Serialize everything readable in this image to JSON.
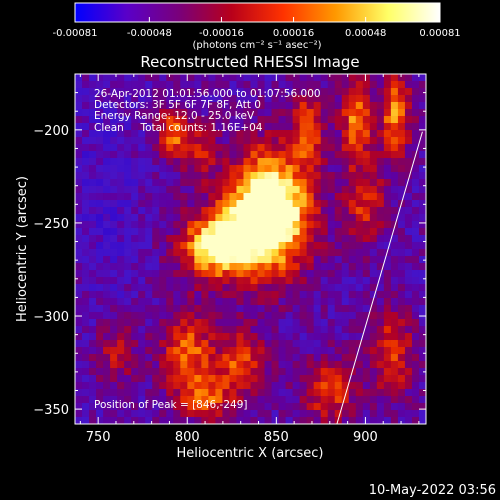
{
  "colorbar": {
    "ticks": [
      "-0.00081",
      "-0.00048",
      "-0.00016",
      "0.00016",
      "0.00048",
      "0.00081"
    ],
    "tick_values": [
      -0.00081,
      -0.00048,
      -0.00016,
      0.00016,
      0.00048,
      0.00081
    ],
    "range": [
      -0.00081,
      0.00081
    ],
    "unit_label": "(photons cm⁻² s⁻¹ asec⁻²)",
    "colors": [
      "#0000ff",
      "#5a00c8",
      "#7a007a",
      "#b8001a",
      "#ff3300",
      "#ff9900",
      "#ffff66",
      "#ffffff"
    ]
  },
  "chart_data": {
    "type": "heatmap",
    "title": "Reconstructed RHESSI Image",
    "xlabel": "Heliocentric X (arcsec)",
    "ylabel": "Heliocentric Y (arcsec)",
    "xlim": [
      737,
      934
    ],
    "ylim": [
      -358,
      -170
    ],
    "x_ticks": [
      750,
      800,
      850,
      900
    ],
    "y_ticks": [
      -200,
      -250,
      -300,
      -350
    ],
    "x_tick_labels": [
      "750",
      "800",
      "850",
      "900"
    ],
    "y_tick_labels": [
      "−200",
      "−250",
      "−300",
      "−350"
    ],
    "info_lines": [
      "26-Apr-2012 01:01:56.000 to 01:07:56.000",
      "Detectors: 3F 5F 6F 7F 8F, Att 0",
      "Energy Range: 12.0 - 25.0 keV",
      "Clean     Total counts: 1.16E+04"
    ],
    "peak_label": "Position of Peak = [846,-249]",
    "peak": {
      "x": 846,
      "y": -249
    },
    "limb_line": [
      {
        "x": 932,
        "y": -201
      },
      {
        "x": 884,
        "y": -358
      }
    ],
    "sources": [
      {
        "x": 846,
        "y": -244,
        "amp": 1.0,
        "sx": 16,
        "sy": 22
      },
      {
        "x": 817,
        "y": -262,
        "amp": 0.75,
        "sx": 14,
        "sy": 12
      },
      {
        "x": 792,
        "y": -202,
        "amp": 0.45,
        "sx": 6,
        "sy": 10
      },
      {
        "x": 808,
        "y": -212,
        "amp": 0.3,
        "sx": 6,
        "sy": 10
      },
      {
        "x": 868,
        "y": -198,
        "amp": 0.4,
        "sx": 6,
        "sy": 14
      },
      {
        "x": 895,
        "y": -195,
        "amp": 0.5,
        "sx": 6,
        "sy": 16
      },
      {
        "x": 917,
        "y": -192,
        "amp": 0.5,
        "sx": 6,
        "sy": 16
      },
      {
        "x": 900,
        "y": -240,
        "amp": 0.35,
        "sx": 8,
        "sy": 14
      },
      {
        "x": 800,
        "y": -320,
        "amp": 0.45,
        "sx": 10,
        "sy": 16
      },
      {
        "x": 830,
        "y": -325,
        "amp": 0.4,
        "sx": 10,
        "sy": 12
      },
      {
        "x": 880,
        "y": -340,
        "amp": 0.4,
        "sx": 10,
        "sy": 12
      },
      {
        "x": 915,
        "y": -320,
        "amp": 0.4,
        "sx": 8,
        "sy": 16
      },
      {
        "x": 760,
        "y": -320,
        "amp": 0.25,
        "sx": 8,
        "sy": 12
      },
      {
        "x": 812,
        "y": -345,
        "amp": 0.35,
        "sx": 10,
        "sy": 8
      }
    ]
  },
  "timestamp": "10-May-2022 03:56"
}
